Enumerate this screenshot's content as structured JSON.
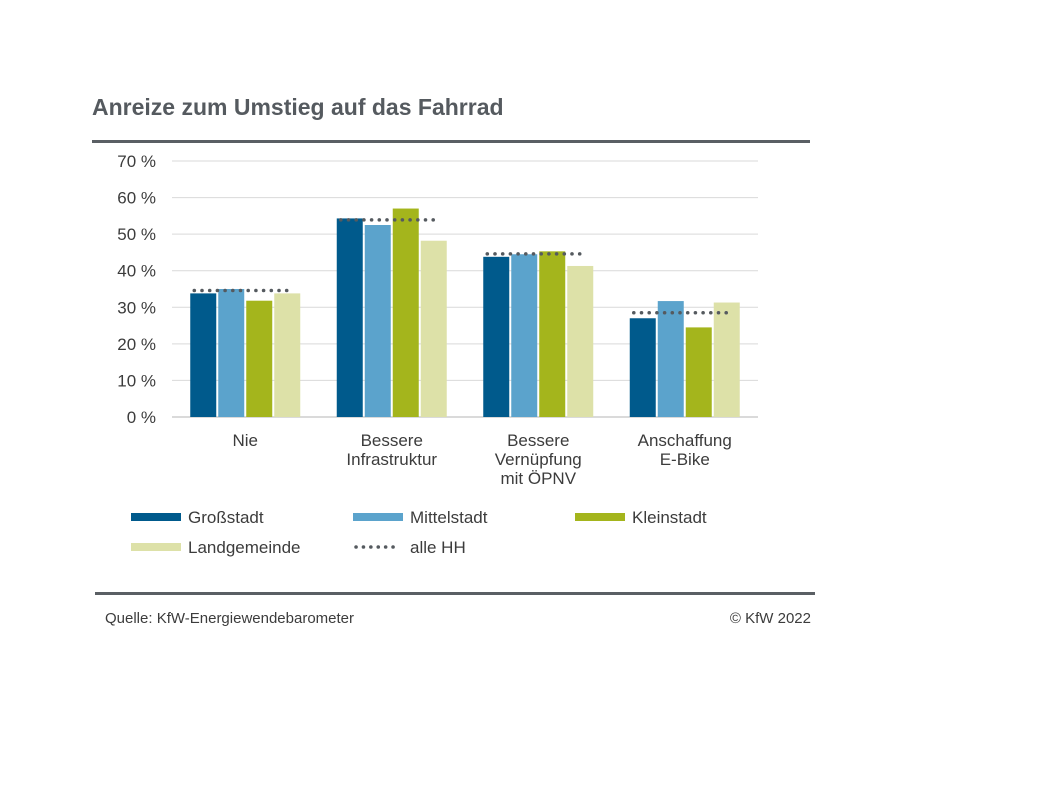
{
  "title": "Anreize zum Umstieg auf das Fahrrad",
  "footer": {
    "source": "Quelle: KfW-Energiewendebarometer",
    "copyright": "© KfW 2022"
  },
  "chart_data": {
    "type": "bar",
    "title": "Anreize zum Umstieg auf das Fahrrad",
    "categories": [
      [
        "Nie"
      ],
      [
        "Bessere",
        "Infrastruktur"
      ],
      [
        "Bessere",
        "Vernüpfung",
        "mit ÖPNV"
      ],
      [
        "Anschaffung",
        "E-Bike"
      ]
    ],
    "yticks": [
      "0 %",
      "10 %",
      "20 %",
      "30 %",
      "40 %",
      "50 %",
      "60 %",
      "70 %"
    ],
    "ylim": [
      0,
      70
    ],
    "grid": true,
    "series": [
      {
        "name": "Großstadt",
        "color": "#005a8c",
        "values": [
          33.8,
          54.3,
          43.8,
          27.0
        ]
      },
      {
        "name": "Mittelstadt",
        "color": "#5ba3cc",
        "values": [
          35.0,
          52.5,
          44.5,
          31.7
        ]
      },
      {
        "name": "Kleinstadt",
        "color": "#a4b51c",
        "values": [
          31.8,
          57.0,
          45.3,
          24.5
        ]
      },
      {
        "name": "Landgemeinde",
        "color": "#dde1a8",
        "values": [
          33.8,
          48.2,
          41.3,
          31.3
        ]
      }
    ],
    "reference": {
      "name": "alle HH",
      "color": "#555a5f",
      "values": [
        34.6,
        53.9,
        44.6,
        28.5
      ]
    },
    "legend_position": "bottom"
  }
}
